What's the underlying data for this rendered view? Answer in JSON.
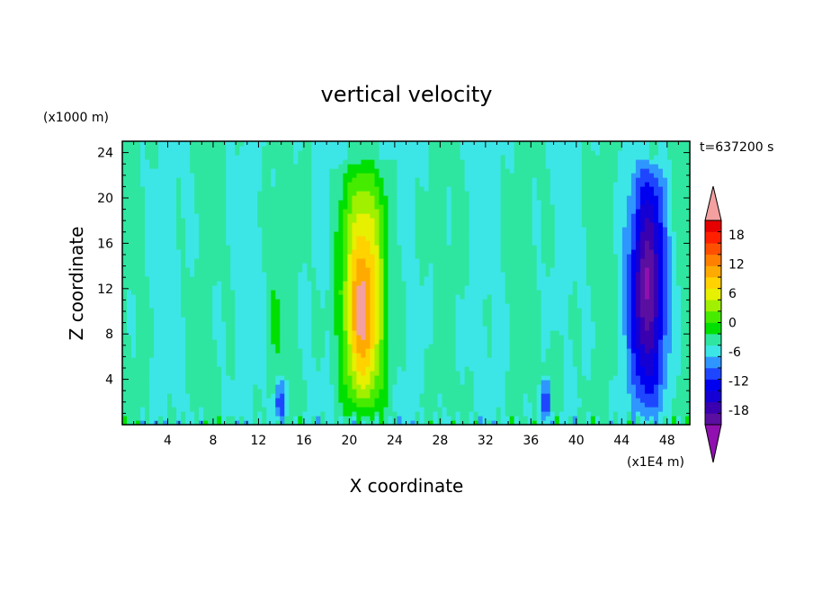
{
  "chart_data": {
    "type": "heatmap",
    "title": "vertical velocity",
    "time_label": "t=637200 s",
    "xlabel": "X coordinate",
    "ylabel": "Z coordinate",
    "x_unit": "(x1E4 m)",
    "y_unit": "(x1000 m)",
    "xlim": [
      0,
      50
    ],
    "ylim": [
      0,
      25
    ],
    "x_ticks": [
      4,
      8,
      12,
      16,
      20,
      24,
      28,
      32,
      36,
      40,
      44,
      48
    ],
    "y_ticks": [
      4,
      8,
      12,
      16,
      20,
      24
    ],
    "colorbar": {
      "range": [
        -21,
        21
      ],
      "step": 3,
      "tick_labels": [
        "18",
        "12",
        "6",
        "0",
        "-6",
        "-12",
        "-18"
      ],
      "tick_values": [
        18,
        12,
        6,
        0,
        -6,
        -12,
        -18
      ],
      "extend": "both",
      "colors": [
        "#5a0fa0",
        "#3a00b0",
        "#1400d4",
        "#0000f0",
        "#1e46ff",
        "#2f96ff",
        "#3ce6e6",
        "#2ee6a0",
        "#00e000",
        "#46ec00",
        "#a0f000",
        "#e6f000",
        "#ffd200",
        "#ffaa00",
        "#ff8000",
        "#ff5000",
        "#ff2000",
        "#e60000"
      ],
      "over_color": "#f4a0a0",
      "under_color": "#9010b0"
    },
    "features": [
      {
        "name": "updraft",
        "x": 21.2,
        "z_bottom": 0.5,
        "z_top": 23.5,
        "peak_z": 10,
        "peak": 21,
        "sigma_x": 1.3
      },
      {
        "name": "downdraft",
        "x": 46.3,
        "z_bottom": 0.5,
        "z_top": 23.5,
        "peak_z": 12,
        "peak": -20,
        "sigma_x": 1.1
      },
      {
        "name": "weak-updraft",
        "x": 13.5,
        "z_bottom": 0.5,
        "z_top": 21.5,
        "peak_z": 10,
        "peak": 2,
        "sigma_x": 0.5
      },
      {
        "name": "weak-downdraft",
        "x": 13.9,
        "z_bottom": 0,
        "z_top": 4.5,
        "peak_z": 2,
        "peak": -10,
        "sigma_x": 0.3
      },
      {
        "name": "weak-downdraft",
        "x": 37.3,
        "z_bottom": 0,
        "z_top": 4.5,
        "peak_z": 2,
        "peak": -10,
        "sigma_x": 0.3
      },
      {
        "name": "weak-updraft",
        "x": 38.2,
        "z_bottom": 0,
        "z_top": 9,
        "peak_z": 4,
        "peak": 3,
        "sigma_x": 0.6
      }
    ]
  }
}
